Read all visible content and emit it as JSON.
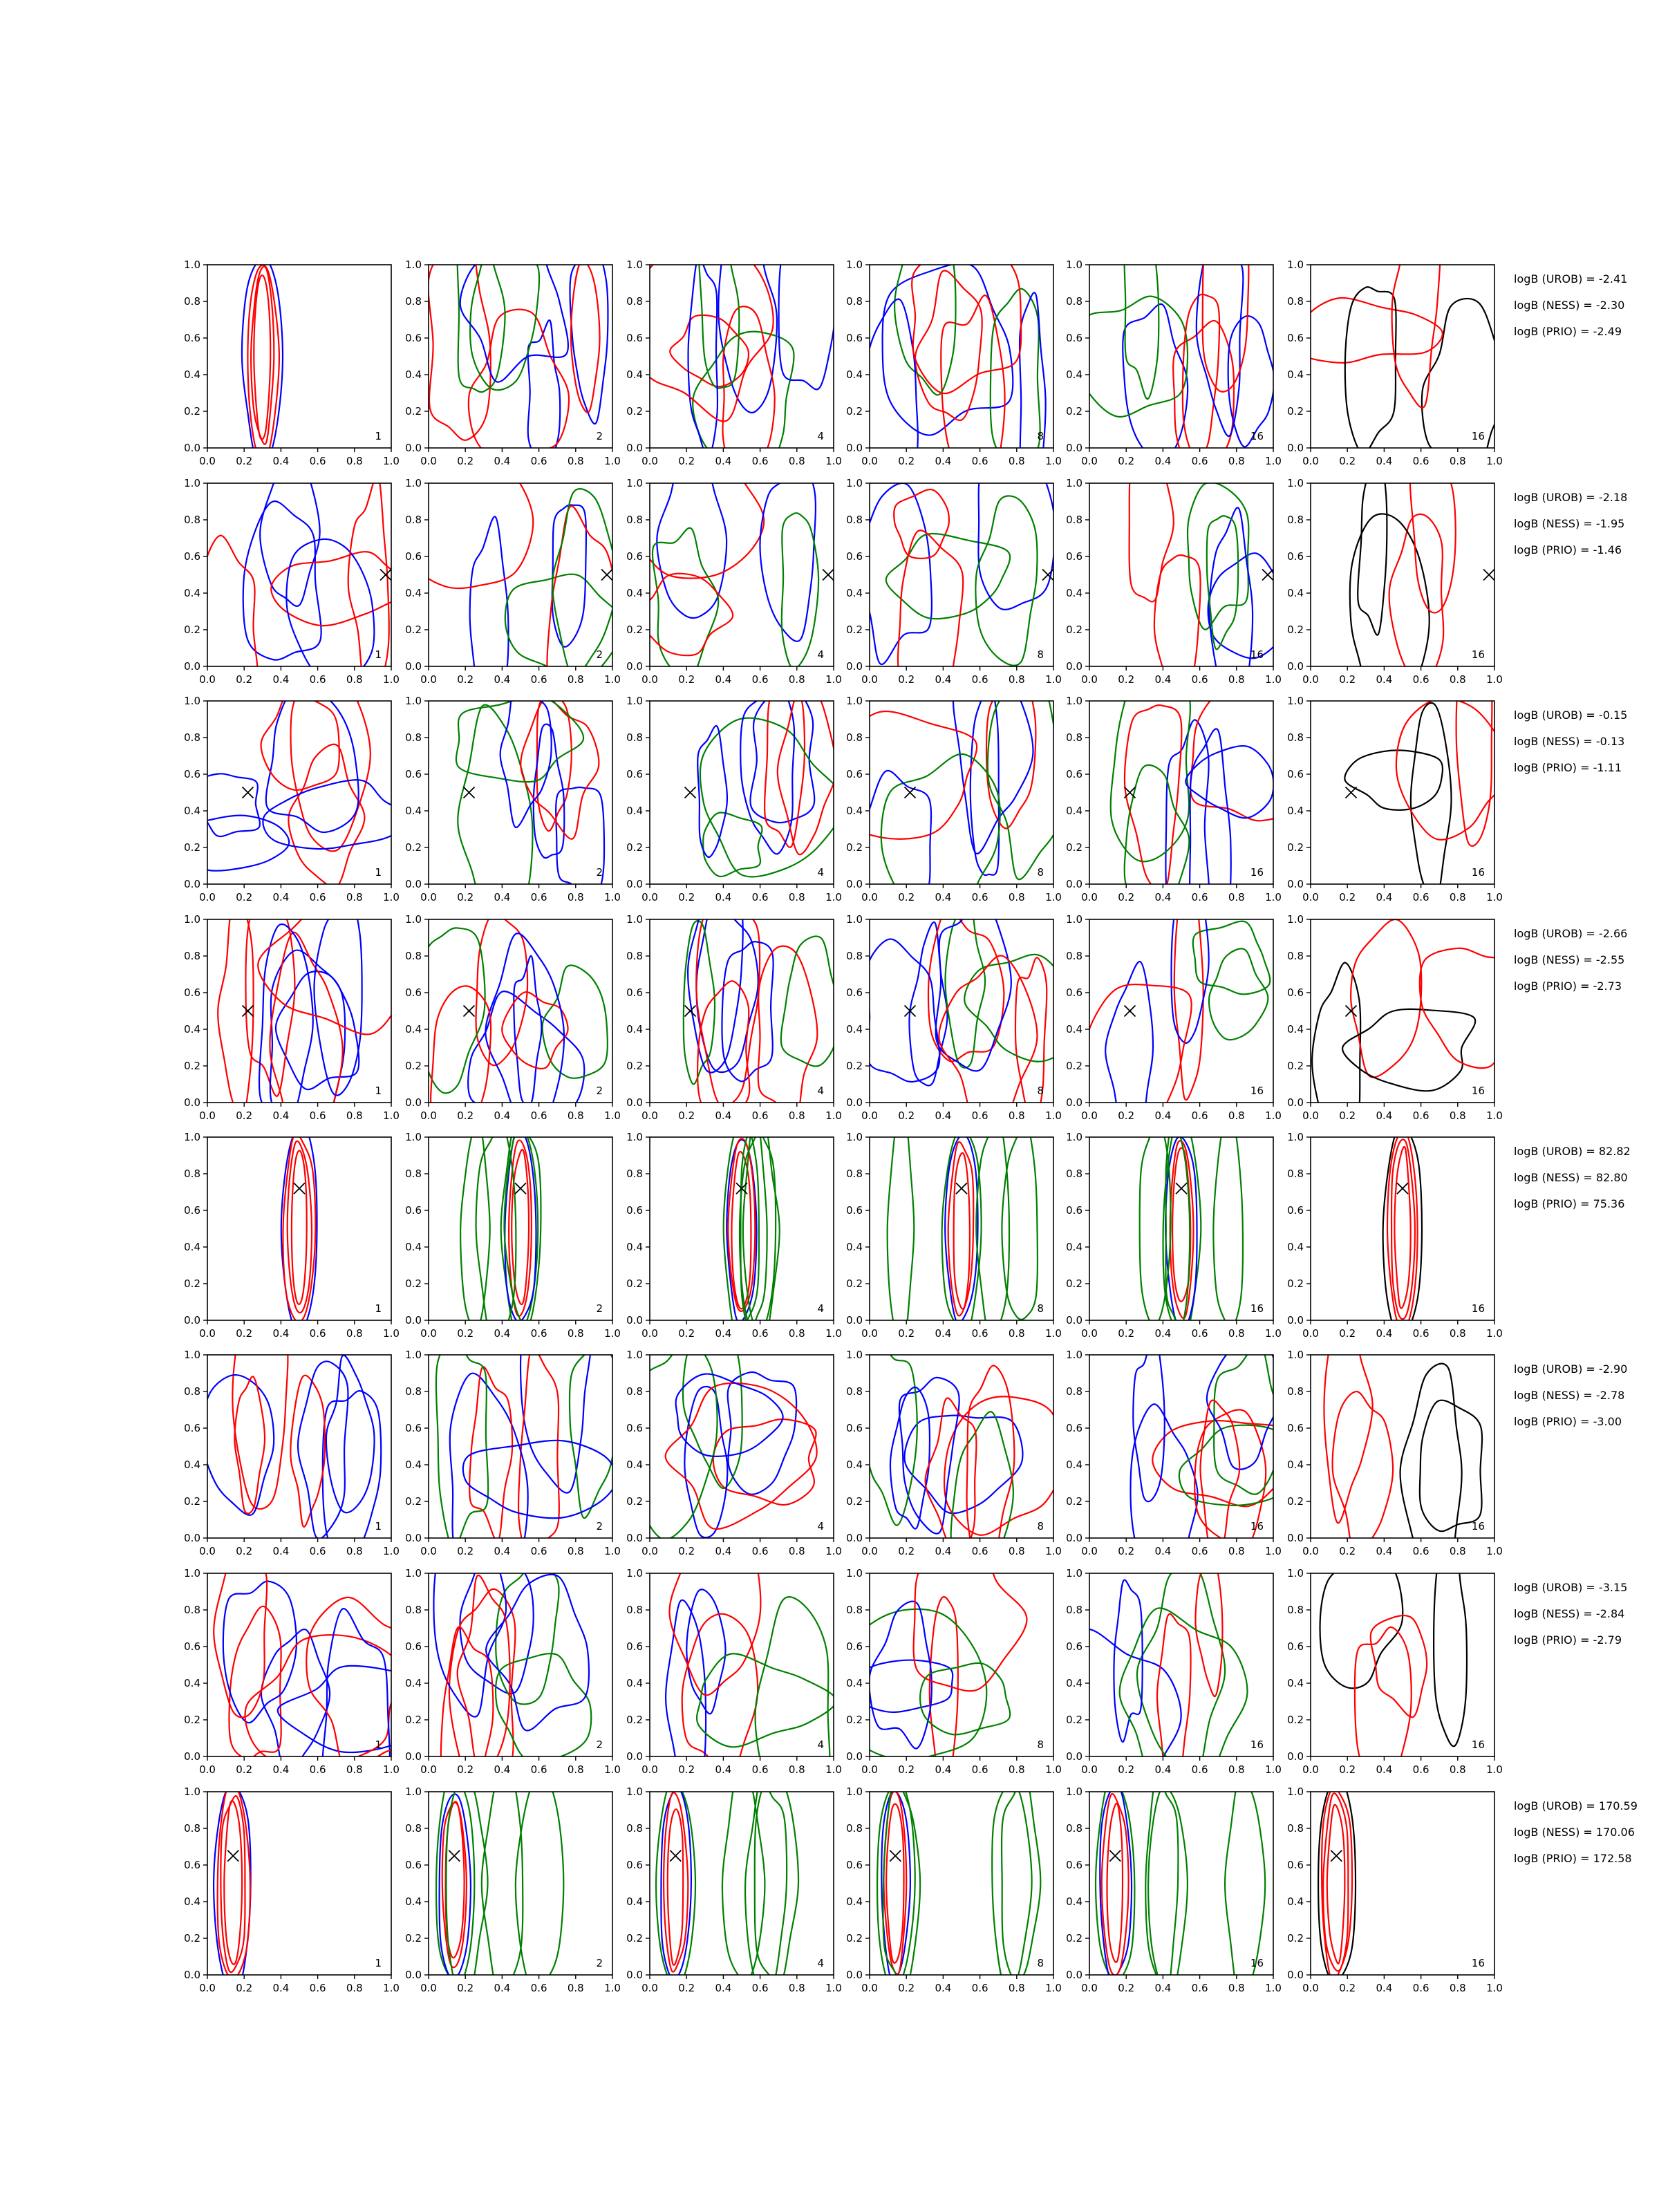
{
  "chart_data": {
    "type": "contour-grid",
    "rows": 8,
    "columns": 6,
    "column_labels": [
      "1",
      "2",
      "4",
      "8",
      "16",
      "16"
    ],
    "xlim": [
      0.0,
      1.0
    ],
    "ylim": [
      0.0,
      1.0
    ],
    "xticks": [
      "0.0",
      "0.2",
      "0.4",
      "0.6",
      "0.8",
      "1.0"
    ],
    "yticks": [
      "0.0",
      "0.2",
      "0.4",
      "0.6",
      "0.8",
      "1.0"
    ],
    "colors": {
      "blue": "#0000ff",
      "red": "#ff0000",
      "green": "#008000",
      "black": "#000000"
    },
    "rows_data": [
      {
        "marker": null,
        "logB": [
          "logB (UROB) = -2.41",
          "logB (NESS) = -2.30",
          "logB (PRIO) = -2.49"
        ]
      },
      {
        "marker": [
          0.97,
          0.5
        ],
        "logB": [
          "logB (UROB) = -2.18",
          "logB (NESS) = -1.95",
          "logB (PRIO) = -1.46"
        ]
      },
      {
        "marker": [
          0.22,
          0.5
        ],
        "logB": [
          "logB (UROB) = -0.15",
          "logB (NESS) = -0.13",
          "logB (PRIO) = -1.11"
        ]
      },
      {
        "marker": [
          0.22,
          0.5
        ],
        "logB": [
          "logB (UROB) = -2.66",
          "logB (NESS) = -2.55",
          "logB (PRIO) = -2.73"
        ]
      },
      {
        "marker": [
          0.5,
          0.72
        ],
        "logB": [
          "logB (UROB) = 82.82",
          "logB (NESS) = 82.80",
          "logB (PRIO) = 75.36"
        ]
      },
      {
        "marker": null,
        "logB": [
          "logB (UROB) = -2.90",
          "logB (NESS) = -2.78",
          "logB (PRIO) = -3.00"
        ]
      },
      {
        "marker": null,
        "logB": [
          "logB (UROB) = -3.15",
          "logB (NESS) = -2.84",
          "logB (PRIO) = -2.79"
        ]
      },
      {
        "marker": [
          0.14,
          0.65
        ],
        "logB": [
          "logB (UROB) = 170.59",
          "logB (NESS) = 170.06",
          "logB (PRIO) = 172.58"
        ]
      }
    ]
  }
}
